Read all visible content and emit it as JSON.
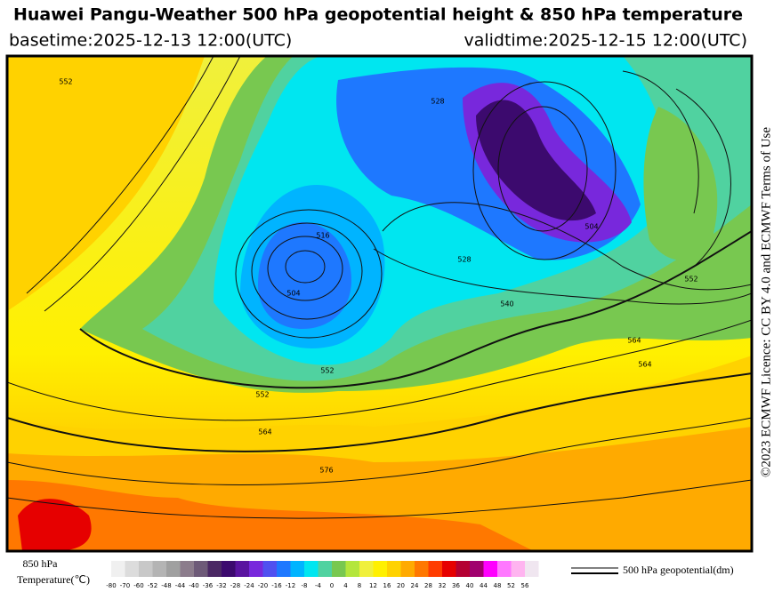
{
  "header": {
    "title": "Huawei Pangu-Weather 500 hPa geopotential height & 850 hPa temperature",
    "basetime": "basetime:2025-12-13 12:00(UTC)",
    "validtime": "validtime:2025-12-15 12:00(UTC)"
  },
  "licence": "©2023 ECMWF Licence: CC BY 4.0 and ECMWF Terms of Use",
  "map": {
    "contour_labels": [
      "552",
      "504",
      "516",
      "552",
      "528",
      "504",
      "540",
      "552",
      "564",
      "576",
      "564",
      "528",
      "552",
      "564"
    ]
  },
  "colorbar": {
    "title_line1": "850 hPa",
    "title_line2": "Temperature(℃)",
    "ticks": [
      "-80",
      "-70",
      "-60",
      "-52",
      "-48",
      "-44",
      "-40",
      "-36",
      "-32",
      "-28",
      "-24",
      "-20",
      "-16",
      "-12",
      "-8",
      "-4",
      "0",
      "4",
      "8",
      "12",
      "16",
      "20",
      "24",
      "28",
      "32",
      "36",
      "40",
      "44",
      "48",
      "52",
      "56"
    ],
    "colors": [
      "#f0f0f0",
      "#dcdcdc",
      "#c8c8c8",
      "#b4b4b4",
      "#a0a0a0",
      "#8c7c8c",
      "#6e5a78",
      "#4b2864",
      "#3c0a6e",
      "#5a14a0",
      "#7828dc",
      "#5050f0",
      "#1e78ff",
      "#00b4ff",
      "#00e6f0",
      "#50d2a0",
      "#78c850",
      "#b4e63c",
      "#f0f03c",
      "#fff000",
      "#ffd200",
      "#ffaa00",
      "#ff7800",
      "#ff3c00",
      "#e60000",
      "#b40032",
      "#a0006e",
      "#ff00ff",
      "#ff78ff",
      "#ffb4f0",
      "#f0e6f0"
    ]
  },
  "legend": {
    "label": "500 hPa geopotential(dm)"
  }
}
